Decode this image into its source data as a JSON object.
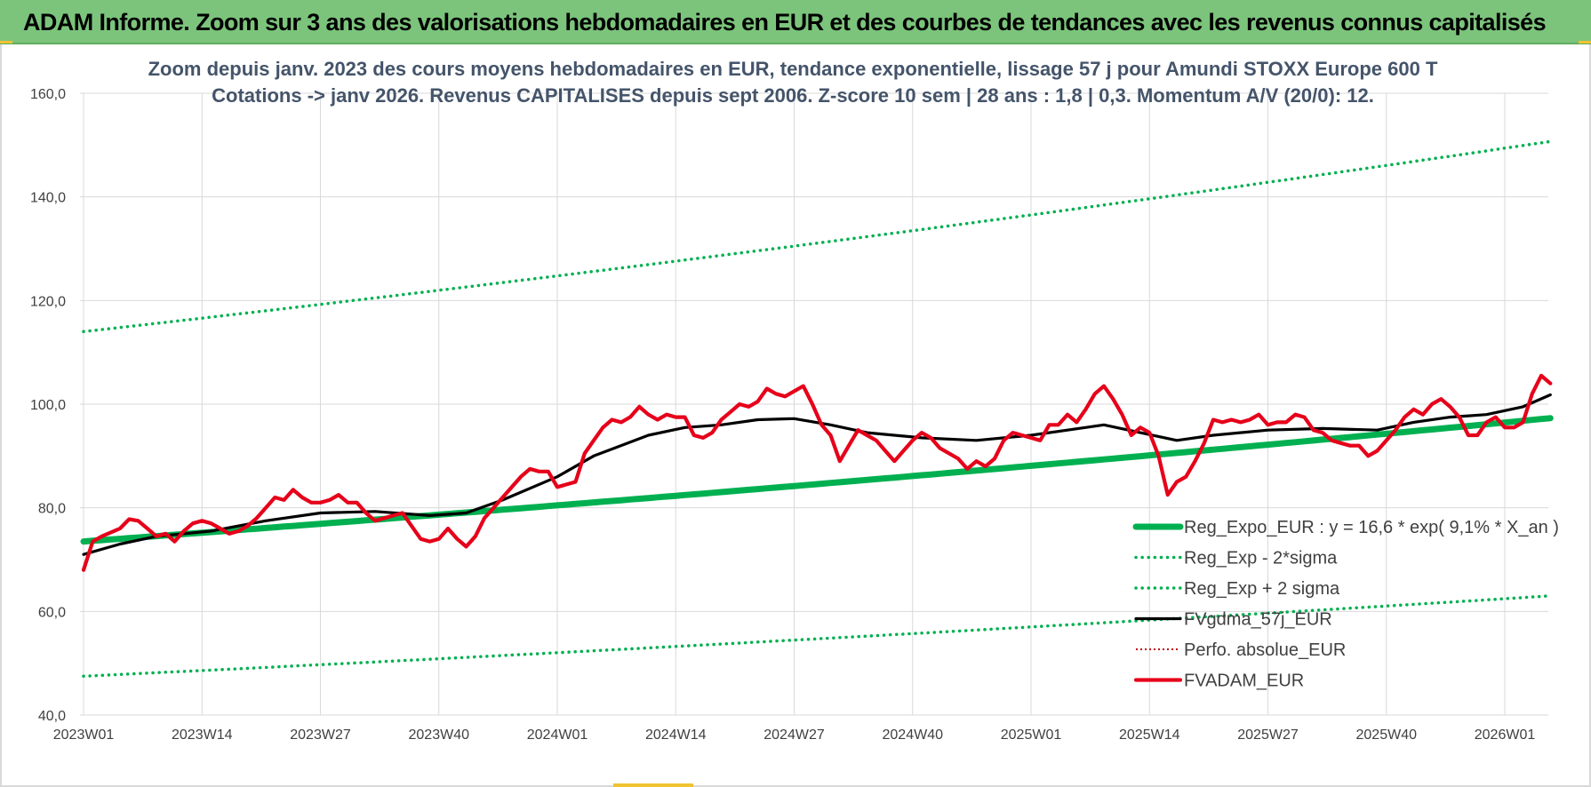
{
  "banner": {
    "title": "ADAM Informe. Zoom sur 3 ans des valorisations hebdomadaires en EUR et des courbes de tendances avec les revenus connus capitalisés"
  },
  "colors": {
    "banner_bg": "#7cc47c",
    "reg_expo": "#00b050",
    "fvgdma": "#000000",
    "fvadam": "#e6001a",
    "perfo": "#c00000",
    "title_text": "#44546a",
    "grid": "#d9d9d9"
  },
  "chart_data": {
    "type": "line",
    "title_lines": [
      "Zoom depuis janv. 2023 des cours moyens hebdomadaires en EUR, tendance exponentielle, lissage 57 j pour Amundi STOXX Europe 600 T",
      "Cotations -> janv 2026. Revenus CAPITALISES depuis sept 2006. Z-score 10 sem | 28 ans : 1,8 | 0,3. Momentum A/V (20/0): 12."
    ],
    "xlabel": "",
    "ylabel": "",
    "ylim": [
      40,
      160
    ],
    "y_ticks": [
      "40,0",
      "60,0",
      "80,0",
      "100,0",
      "120,0",
      "140,0",
      "160,0"
    ],
    "x_range_weeks": [
      0,
      161
    ],
    "x_ticks": [
      {
        "label": "2023W01",
        "week": 0
      },
      {
        "label": "2023W14",
        "week": 13
      },
      {
        "label": "2023W27",
        "week": 26
      },
      {
        "label": "2023W40",
        "week": 39
      },
      {
        "label": "2024W01",
        "week": 52
      },
      {
        "label": "2024W14",
        "week": 65
      },
      {
        "label": "2024W27",
        "week": 78
      },
      {
        "label": "2024W40",
        "week": 91
      },
      {
        "label": "2025W01",
        "week": 104
      },
      {
        "label": "2025W14",
        "week": 117
      },
      {
        "label": "2025W27",
        "week": 130
      },
      {
        "label": "2025W40",
        "week": 143
      },
      {
        "label": "2026W01",
        "week": 156
      }
    ],
    "grid": true,
    "legend_position": "bottom-right",
    "series": [
      {
        "name": "Reg_Expo_EUR : y = 16,6 * exp( 9,1% *  X_an )",
        "style": "thick",
        "color": "#00b050",
        "points": [
          [
            0,
            73.5
          ],
          [
            161,
            97.3
          ]
        ]
      },
      {
        "name": "Reg_Exp - 2*sigma",
        "style": "dotted",
        "color": "#00b050",
        "points": [
          [
            0,
            47.5
          ],
          [
            161,
            63.0
          ]
        ]
      },
      {
        "name": "Reg_Exp + 2 sigma",
        "style": "dotted",
        "color": "#00b050",
        "points": [
          [
            0,
            114.0
          ],
          [
            161,
            150.7
          ]
        ]
      },
      {
        "name": "FVgdma_57j_EUR",
        "style": "solid",
        "color": "#000000",
        "points": [
          [
            0,
            71
          ],
          [
            4,
            73
          ],
          [
            8,
            74.5
          ],
          [
            14,
            75.5
          ],
          [
            20,
            77.5
          ],
          [
            26,
            79
          ],
          [
            32,
            79.3
          ],
          [
            38,
            78.5
          ],
          [
            42,
            79
          ],
          [
            46,
            81.5
          ],
          [
            52,
            86
          ],
          [
            56,
            90
          ],
          [
            62,
            94
          ],
          [
            66,
            95.5
          ],
          [
            70,
            96
          ],
          [
            74,
            97
          ],
          [
            78,
            97.2
          ],
          [
            82,
            96
          ],
          [
            86,
            94.5
          ],
          [
            92,
            93.5
          ],
          [
            98,
            93
          ],
          [
            104,
            94
          ],
          [
            108,
            95
          ],
          [
            112,
            96
          ],
          [
            116,
            94.5
          ],
          [
            120,
            93
          ],
          [
            124,
            94
          ],
          [
            130,
            95
          ],
          [
            136,
            95.3
          ],
          [
            142,
            95
          ],
          [
            146,
            96.5
          ],
          [
            150,
            97.5
          ],
          [
            154,
            98
          ],
          [
            158,
            99.5
          ],
          [
            161,
            101.8
          ]
        ]
      },
      {
        "name": "Perfo. absolue_EUR",
        "style": "dotted-thin",
        "color": "#c00000",
        "points": []
      },
      {
        "name": "FVADAM_EUR",
        "style": "solid-thick",
        "color": "#e6001a",
        "points": [
          [
            0,
            68
          ],
          [
            1,
            73.5
          ],
          [
            2,
            74.5
          ],
          [
            4,
            76
          ],
          [
            5,
            77.8
          ],
          [
            6,
            77.5
          ],
          [
            7,
            76
          ],
          [
            8,
            74.5
          ],
          [
            9,
            75
          ],
          [
            10,
            73.5
          ],
          [
            11,
            75.5
          ],
          [
            12,
            77
          ],
          [
            13,
            77.5
          ],
          [
            14,
            77
          ],
          [
            15,
            76
          ],
          [
            16,
            75
          ],
          [
            17,
            75.5
          ],
          [
            18,
            76.5
          ],
          [
            19,
            78
          ],
          [
            20,
            80
          ],
          [
            21,
            82
          ],
          [
            22,
            81.5
          ],
          [
            23,
            83.5
          ],
          [
            24,
            82
          ],
          [
            25,
            81
          ],
          [
            26,
            81
          ],
          [
            27,
            81.5
          ],
          [
            28,
            82.5
          ],
          [
            29,
            81
          ],
          [
            30,
            81
          ],
          [
            31,
            79
          ],
          [
            32,
            77.5
          ],
          [
            33,
            78
          ],
          [
            34,
            78.5
          ],
          [
            35,
            79
          ],
          [
            36,
            76.5
          ],
          [
            37,
            74
          ],
          [
            38,
            73.5
          ],
          [
            39,
            74
          ],
          [
            40,
            76
          ],
          [
            41,
            74
          ],
          [
            42,
            72.5
          ],
          [
            43,
            74.5
          ],
          [
            44,
            78
          ],
          [
            45,
            80
          ],
          [
            46,
            82
          ],
          [
            47,
            84
          ],
          [
            48,
            86
          ],
          [
            49,
            87.5
          ],
          [
            50,
            87
          ],
          [
            51,
            87
          ],
          [
            52,
            84
          ],
          [
            53,
            84.5
          ],
          [
            54,
            85
          ],
          [
            55,
            90.5
          ],
          [
            56,
            93
          ],
          [
            57,
            95.5
          ],
          [
            58,
            97
          ],
          [
            59,
            96.5
          ],
          [
            60,
            97.5
          ],
          [
            61,
            99.5
          ],
          [
            62,
            98
          ],
          [
            63,
            97
          ],
          [
            64,
            98
          ],
          [
            65,
            97.5
          ],
          [
            66,
            97.5
          ],
          [
            67,
            94
          ],
          [
            68,
            93.5
          ],
          [
            69,
            94.5
          ],
          [
            70,
            97
          ],
          [
            71,
            98.5
          ],
          [
            72,
            100
          ],
          [
            73,
            99.5
          ],
          [
            74,
            100.5
          ],
          [
            75,
            103
          ],
          [
            76,
            102
          ],
          [
            77,
            101.5
          ],
          [
            78,
            102.5
          ],
          [
            79,
            103.5
          ],
          [
            80,
            100
          ],
          [
            81,
            96
          ],
          [
            82,
            94
          ],
          [
            83,
            89
          ],
          [
            84,
            92
          ],
          [
            85,
            95
          ],
          [
            86,
            94
          ],
          [
            87,
            93
          ],
          [
            88,
            91
          ],
          [
            89,
            89
          ],
          [
            90,
            91
          ],
          [
            91,
            93
          ],
          [
            92,
            94.5
          ],
          [
            93,
            93.5
          ],
          [
            94,
            91.5
          ],
          [
            95,
            90.5
          ],
          [
            96,
            89.5
          ],
          [
            97,
            87.5
          ],
          [
            98,
            89
          ],
          [
            99,
            88
          ],
          [
            100,
            89.5
          ],
          [
            101,
            93
          ],
          [
            102,
            94.5
          ],
          [
            103,
            94
          ],
          [
            104,
            93.5
          ],
          [
            105,
            93
          ],
          [
            106,
            96
          ],
          [
            107,
            96
          ],
          [
            108,
            98
          ],
          [
            109,
            96.5
          ],
          [
            110,
            99
          ],
          [
            111,
            102
          ],
          [
            112,
            103.5
          ],
          [
            113,
            101
          ],
          [
            114,
            98
          ],
          [
            115,
            94
          ],
          [
            116,
            95.5
          ],
          [
            117,
            94.5
          ],
          [
            118,
            90
          ],
          [
            119,
            82.5
          ],
          [
            120,
            85
          ],
          [
            121,
            86
          ],
          [
            122,
            89
          ],
          [
            123,
            92.5
          ],
          [
            124,
            97
          ],
          [
            125,
            96.5
          ],
          [
            126,
            97
          ],
          [
            127,
            96.5
          ],
          [
            128,
            97
          ],
          [
            129,
            98
          ],
          [
            130,
            96
          ],
          [
            131,
            96.5
          ],
          [
            132,
            96.5
          ],
          [
            133,
            98
          ],
          [
            134,
            97.5
          ],
          [
            135,
            95
          ],
          [
            136,
            94.5
          ],
          [
            137,
            93
          ],
          [
            138,
            92.5
          ],
          [
            139,
            92
          ],
          [
            140,
            92
          ],
          [
            141,
            90
          ],
          [
            142,
            91
          ],
          [
            143,
            93
          ],
          [
            144,
            95
          ],
          [
            145,
            97.5
          ],
          [
            146,
            99
          ],
          [
            147,
            98
          ],
          [
            148,
            100
          ],
          [
            149,
            101
          ],
          [
            150,
            99.5
          ],
          [
            151,
            97.5
          ],
          [
            152,
            94
          ],
          [
            153,
            94
          ],
          [
            154,
            96.5
          ],
          [
            155,
            97.5
          ],
          [
            156,
            95.5
          ],
          [
            157,
            95.5
          ],
          [
            158,
            96.5
          ],
          [
            159,
            102
          ],
          [
            160,
            105.5
          ],
          [
            161,
            104
          ]
        ]
      }
    ]
  }
}
